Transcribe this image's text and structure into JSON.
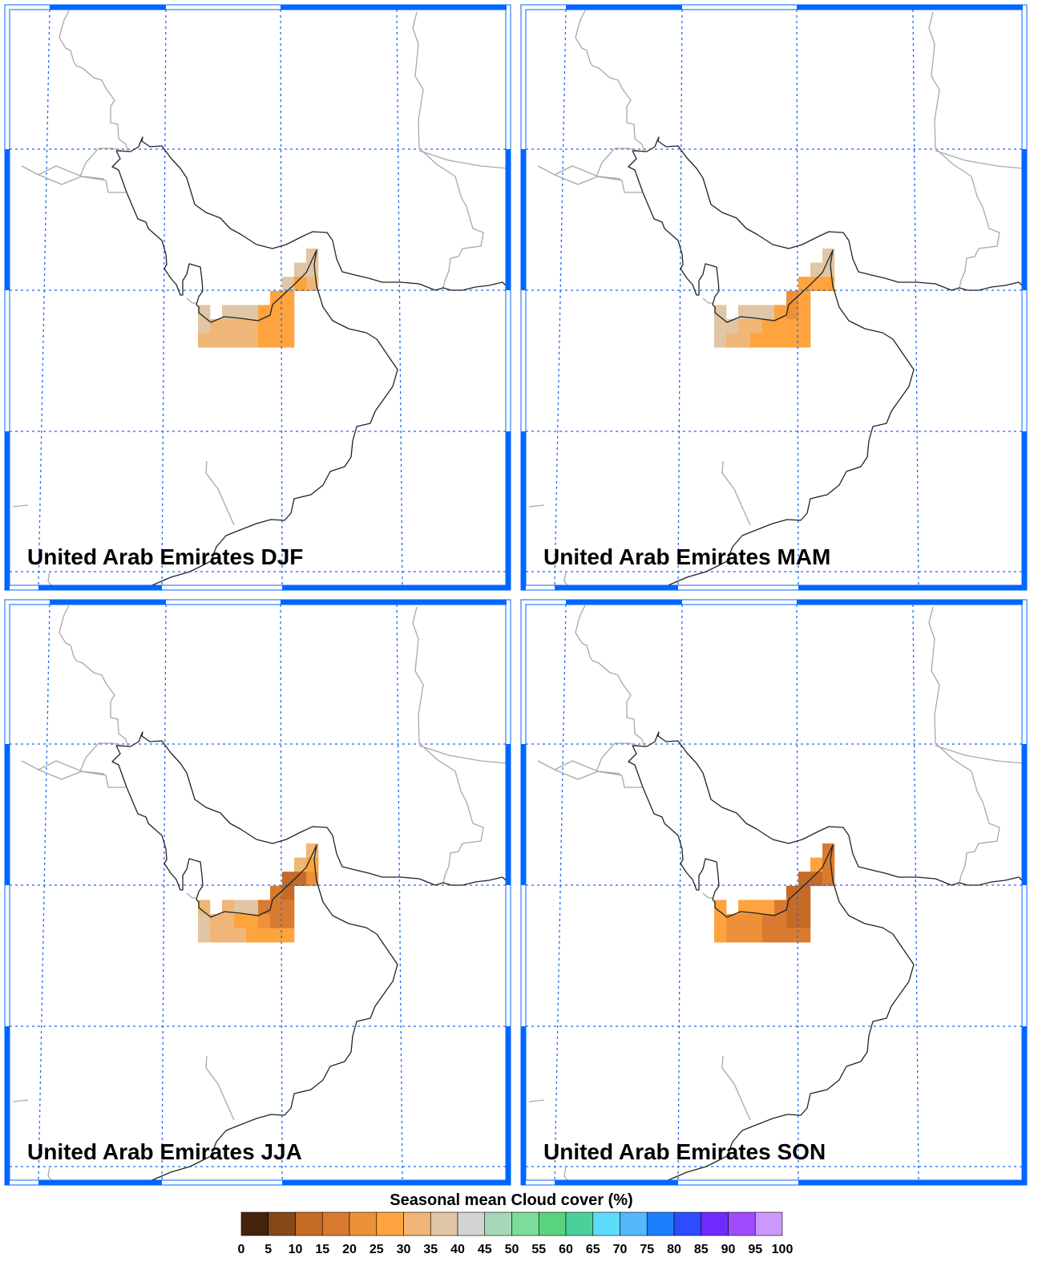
{
  "panels": [
    {
      "title": "United Arab Emirates DJF",
      "season": "DJF",
      "cells": [
        [
          null,
          null,
          null,
          null,
          null,
          null,
          null,
          null,
          null,
          35
        ],
        [
          null,
          null,
          null,
          null,
          null,
          null,
          null,
          null,
          35,
          35
        ],
        [
          null,
          null,
          null,
          null,
          null,
          null,
          null,
          35,
          25,
          30
        ],
        [
          null,
          null,
          null,
          null,
          null,
          null,
          25,
          25,
          null,
          null
        ],
        [
          35,
          null,
          35,
          35,
          35,
          25,
          25,
          25,
          null,
          null
        ],
        [
          35,
          30,
          30,
          30,
          30,
          25,
          25,
          25,
          null,
          null
        ],
        [
          30,
          30,
          30,
          30,
          30,
          25,
          25,
          25,
          null,
          null
        ]
      ]
    },
    {
      "title": "United Arab Emirates MAM",
      "season": "MAM",
      "cells": [
        [
          null,
          null,
          null,
          null,
          null,
          null,
          null,
          null,
          null,
          35
        ],
        [
          null,
          null,
          null,
          null,
          null,
          null,
          null,
          null,
          35,
          35
        ],
        [
          null,
          null,
          null,
          null,
          null,
          null,
          null,
          25,
          25,
          25
        ],
        [
          null,
          null,
          null,
          null,
          null,
          null,
          20,
          25,
          null,
          null
        ],
        [
          35,
          null,
          35,
          35,
          35,
          25,
          20,
          25,
          null,
          null
        ],
        [
          35,
          35,
          30,
          30,
          25,
          25,
          25,
          25,
          null,
          null
        ],
        [
          35,
          30,
          30,
          25,
          25,
          25,
          25,
          25,
          null,
          null
        ]
      ]
    },
    {
      "title": "United Arab Emirates JJA",
      "season": "JJA",
      "cells": [
        [
          null,
          null,
          null,
          null,
          null,
          null,
          null,
          null,
          null,
          30
        ],
        [
          null,
          null,
          null,
          null,
          null,
          null,
          null,
          null,
          30,
          25
        ],
        [
          null,
          null,
          null,
          null,
          null,
          null,
          null,
          10,
          10,
          20
        ],
        [
          null,
          null,
          null,
          null,
          null,
          null,
          15,
          10,
          null,
          null
        ],
        [
          30,
          null,
          30,
          35,
          35,
          15,
          15,
          15,
          null,
          null
        ],
        [
          35,
          30,
          30,
          25,
          25,
          20,
          15,
          15,
          null,
          null
        ],
        [
          35,
          30,
          30,
          30,
          25,
          25,
          25,
          25,
          null,
          null
        ]
      ]
    },
    {
      "title": "United Arab Emirates SON",
      "season": "SON",
      "cells": [
        [
          null,
          null,
          null,
          null,
          null,
          null,
          null,
          null,
          null,
          15
        ],
        [
          null,
          null,
          null,
          null,
          null,
          null,
          null,
          null,
          25,
          15
        ],
        [
          null,
          null,
          null,
          null,
          null,
          null,
          null,
          10,
          10,
          15
        ],
        [
          null,
          null,
          null,
          null,
          null,
          null,
          10,
          10,
          null,
          null
        ],
        [
          25,
          null,
          25,
          25,
          25,
          15,
          10,
          10,
          null,
          null
        ],
        [
          25,
          20,
          20,
          20,
          15,
          15,
          10,
          10,
          null,
          null
        ],
        [
          25,
          20,
          20,
          20,
          15,
          15,
          15,
          15,
          null,
          null
        ]
      ]
    }
  ],
  "colorbar": {
    "title": "Seasonal mean Cloud cover (%)",
    "levels": [
      0,
      5,
      10,
      15,
      20,
      25,
      30,
      35,
      40,
      45,
      50,
      55,
      60,
      65,
      70,
      75,
      80,
      85,
      90,
      95,
      100
    ],
    "labels": [
      "0",
      "5",
      "10",
      "15",
      "20",
      "25",
      "30",
      "35",
      "40",
      "45",
      "50",
      "55",
      "60",
      "65",
      "70",
      "75",
      "80",
      "85",
      "90",
      "95",
      "100"
    ],
    "colors": [
      "#45220c",
      "#854818",
      "#c66a27",
      "#d97b2f",
      "#ec9138",
      "#fea33d",
      "#f0b677",
      "#e0c6a4",
      "#d3d3d3",
      "#a6d8b7",
      "#7ddc9a",
      "#5ad37e",
      "#4ad09a",
      "#5ddcfb",
      "#55b8fd",
      "#1c80fd",
      "#2c4cfd",
      "#6f2bfd",
      "#a04bfd",
      "#cb98fb"
    ]
  },
  "style": {
    "frame_color": "#0066ff",
    "grid_color": "#1a66ff",
    "coast_color": "#222222",
    "border_color": "#a8a8a8"
  }
}
